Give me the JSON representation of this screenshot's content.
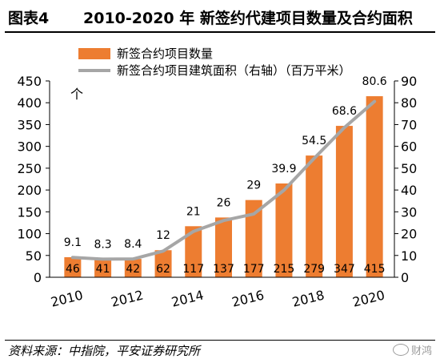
{
  "header": {
    "figure_label": "图表4",
    "title": "2010-2020 年 新签约代建项目数量及合约面积"
  },
  "footer": {
    "source": "资料来源：中指院，平安证券研究所",
    "watermark": "财鸿",
    "watermark_icon": "wechat-icon"
  },
  "colors": {
    "bar": "#ED7D31",
    "line": "#A6A6A6",
    "text": "#000000"
  },
  "chart_data": {
    "type": "bar",
    "x": [
      2010,
      2011,
      2012,
      2013,
      2014,
      2015,
      2016,
      2017,
      2018,
      2019,
      2020
    ],
    "x_tick_labels": [
      "2010",
      "2012",
      "2014",
      "2016",
      "2018",
      "2020"
    ],
    "left_unit": "个",
    "ylim": [
      0,
      450
    ],
    "y_ticks": [
      0,
      50,
      100,
      150,
      200,
      250,
      300,
      350,
      400,
      450
    ],
    "y2lim": [
      0,
      90
    ],
    "y2_ticks": [
      0,
      10,
      20,
      30,
      40,
      50,
      60,
      70,
      80,
      90
    ],
    "legend_position": "top-left",
    "grid": false,
    "series": [
      {
        "name": "新签合约项目数量",
        "type": "bar",
        "axis": "left",
        "values": [
          46,
          41,
          42,
          62,
          117,
          137,
          177,
          215,
          279,
          347,
          415
        ]
      },
      {
        "name": "新签合约项目建筑面积（右轴）（百万平米）",
        "type": "line",
        "axis": "right",
        "values": [
          9.1,
          8.3,
          8.4,
          12,
          21,
          26,
          29,
          39.9,
          54.5,
          68.6,
          80.6
        ]
      }
    ]
  }
}
